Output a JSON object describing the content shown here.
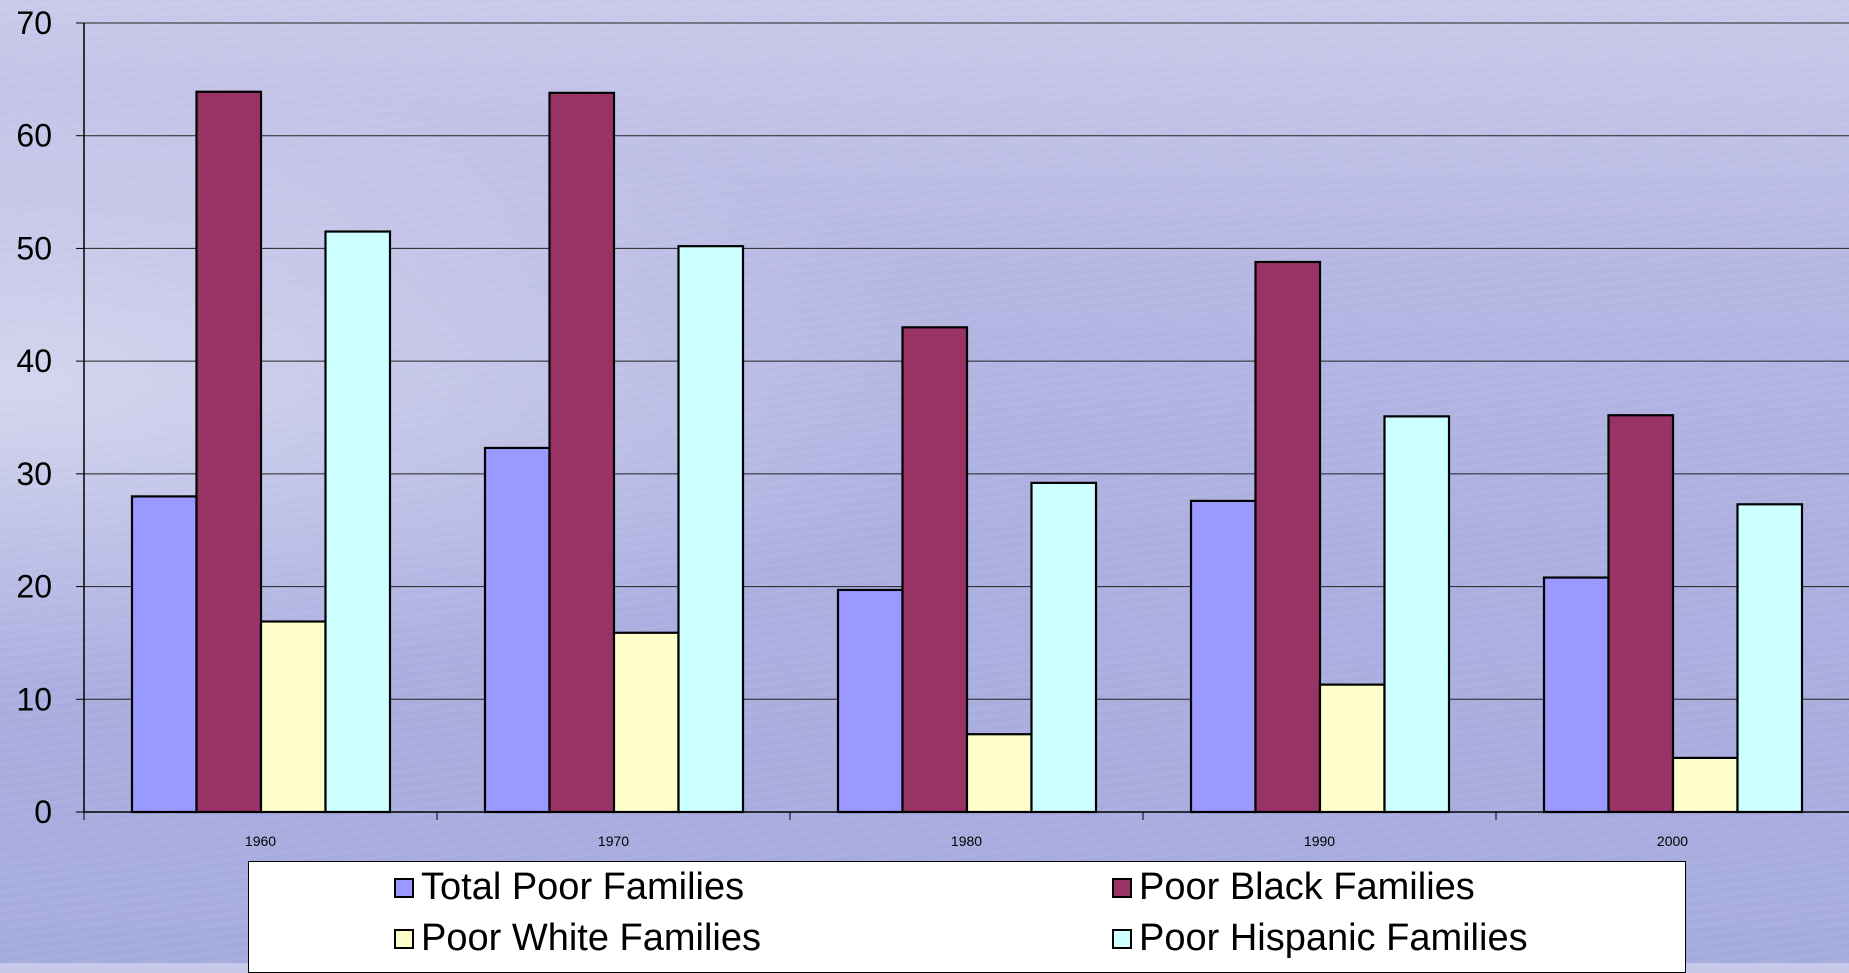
{
  "chart_data": {
    "type": "bar",
    "title": "",
    "xlabel": "",
    "ylabel": "",
    "categories": [
      "1960",
      "1970",
      "1980",
      "1990",
      "2000"
    ],
    "ylim": [
      0,
      70
    ],
    "yticks": [
      "0",
      "10",
      "20",
      "30",
      "40",
      "50",
      "60",
      "70"
    ],
    "grid": true,
    "legend_position": "bottom",
    "series": [
      {
        "name": "Total Poor Families",
        "color": "#9999ff",
        "values": [
          28,
          32.3,
          19.7,
          27.6,
          20.8
        ]
      },
      {
        "name": "Poor Black Families",
        "color": "#993366",
        "values": [
          63.9,
          63.8,
          43,
          48.8,
          35.2
        ]
      },
      {
        "name": "Poor White Families",
        "color": "#ffffcc",
        "values": [
          16.9,
          15.9,
          6.9,
          11.3,
          4.8
        ]
      },
      {
        "name": "Poor Hispanic Families",
        "color": "#ccffff",
        "values": [
          51.5,
          50.2,
          29.2,
          35.1,
          27.3
        ]
      }
    ]
  }
}
